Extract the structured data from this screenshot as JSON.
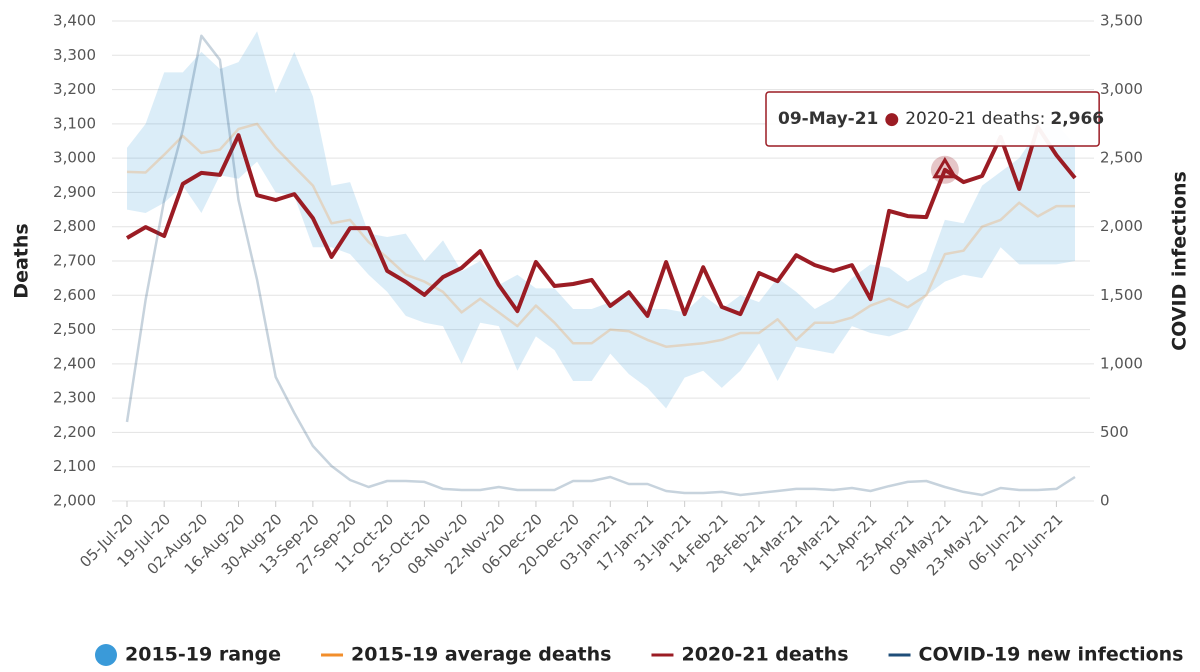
{
  "chart_data": {
    "type": "line",
    "categories": [
      "05-Jul-20",
      null,
      "19-Jul-20",
      null,
      "02-Aug-20",
      null,
      "16-Aug-20",
      null,
      "30-Aug-20",
      null,
      "13-Sep-20",
      null,
      "27-Sep-20",
      null,
      "11-Oct-20",
      null,
      "25-Oct-20",
      null,
      "08-Nov-20",
      null,
      "22-Nov-20",
      null,
      "06-Dec-20",
      null,
      "20-Dec-20",
      null,
      "03-Jan-21",
      null,
      "17-Jan-21",
      null,
      "31-Jan-21",
      null,
      "14-Feb-21",
      null,
      "28-Feb-21",
      null,
      "14-Mar-21",
      null,
      "28-Mar-21",
      null,
      "11-Apr-21",
      null,
      "25-Apr-21",
      null,
      "09-May-21",
      null,
      "23-May-21",
      null,
      "06-Jun-21",
      null,
      "20-Jun-21",
      null
    ],
    "series": [
      {
        "name": "2015-19 range",
        "color": "#3a9ad9",
        "low": [
          2850,
          2840,
          2870,
          2920,
          2840,
          2950,
          2940,
          2990,
          2900,
          2890,
          2740,
          2740,
          2720,
          2660,
          2610,
          2540,
          2520,
          2510,
          2400,
          2520,
          2510,
          2380,
          2480,
          2440,
          2350,
          2350,
          2430,
          2370,
          2330,
          2270,
          2360,
          2380,
          2330,
          2380,
          2460,
          2350,
          2450,
          2440,
          2430,
          2510,
          2490,
          2480,
          2500,
          2600,
          2640,
          2660,
          2650,
          2740,
          2690,
          2690,
          2690,
          2700
        ],
        "high": [
          3030,
          3100,
          3250,
          3250,
          3310,
          3260,
          3280,
          3370,
          3190,
          3310,
          3180,
          2920,
          2930,
          2780,
          2770,
          2780,
          2700,
          2760,
          2670,
          2700,
          2630,
          2660,
          2620,
          2620,
          2560,
          2560,
          2580,
          2610,
          2560,
          2560,
          2550,
          2600,
          2560,
          2600,
          2580,
          2650,
          2610,
          2560,
          2590,
          2650,
          2690,
          2680,
          2640,
          2670,
          2820,
          2810,
          2920,
          2960,
          3000,
          3080,
          3100,
          3040
        ]
      },
      {
        "name": "2015-19 average deaths",
        "color": "#f28e2b",
        "values": [
          2960,
          2958,
          3010,
          3065,
          3015,
          3025,
          3085,
          3100,
          3030,
          2975,
          2920,
          2810,
          2820,
          2755,
          2710,
          2660,
          2640,
          2610,
          2550,
          2590,
          2550,
          2510,
          2570,
          2520,
          2460,
          2460,
          2500,
          2495,
          2470,
          2450,
          2455,
          2460,
          2470,
          2490,
          2490,
          2530,
          2470,
          2520,
          2520,
          2535,
          2570,
          2590,
          2565,
          2600,
          2720,
          2730,
          2800,
          2820,
          2870,
          2830,
          2860,
          2860
        ]
      },
      {
        "name": "2020-21 deaths",
        "color": "#9b1c24",
        "values": [
          2767,
          2799,
          2773,
          2925,
          2957,
          2951,
          3067,
          2892,
          2878,
          2895,
          2825,
          2712,
          2796,
          2796,
          2671,
          2639,
          2601,
          2653,
          2680,
          2729,
          2630,
          2554,
          2697,
          2627,
          2633,
          2645,
          2569,
          2609,
          2540,
          2697,
          2545,
          2682,
          2566,
          2545,
          2665,
          2641,
          2717,
          2688,
          2671,
          2688,
          2589,
          2846,
          2831,
          2828,
          2966,
          2930,
          2948,
          3062,
          2910,
          3091,
          3009,
          2942
        ]
      },
      {
        "name": "COVID-19 new infections",
        "color": "#1f4e79",
        "axis": "y2",
        "values": [
          576,
          1466,
          2195,
          2706,
          3392,
          3217,
          2195,
          1612,
          904,
          642,
          401,
          255,
          153,
          102,
          146,
          146,
          139,
          88,
          80,
          80,
          102,
          80,
          80,
          80,
          146,
          146,
          175,
          124,
          124,
          73,
          58,
          58,
          66,
          44,
          58,
          73,
          88,
          88,
          80,
          95,
          73,
          109,
          139,
          146,
          102,
          66,
          44,
          95,
          80,
          80,
          88,
          175
        ]
      }
    ],
    "ylabel": "Deaths",
    "y2label": "COVID infections",
    "ylim": [
      2000,
      3400
    ],
    "yticks": [
      {
        "value": 2000,
        "label": "2,000"
      },
      {
        "value": 2100,
        "label": "2,100"
      },
      {
        "value": 2200,
        "label": "2,200"
      },
      {
        "value": 2300,
        "label": "2,300"
      },
      {
        "value": 2400,
        "label": "2,400"
      },
      {
        "value": 2500,
        "label": "2,500"
      },
      {
        "value": 2600,
        "label": "2,600"
      },
      {
        "value": 2700,
        "label": "2,700"
      },
      {
        "value": 2800,
        "label": "2,800"
      },
      {
        "value": 2900,
        "label": "2,900"
      },
      {
        "value": 3000,
        "label": "3,000"
      },
      {
        "value": 3100,
        "label": "3,100"
      },
      {
        "value": 3200,
        "label": "3,200"
      },
      {
        "value": 3300,
        "label": "3,300"
      },
      {
        "value": 3400,
        "label": "3,400"
      }
    ],
    "y2lim": [
      0,
      3500
    ],
    "y2ticks": [
      0,
      500,
      {
        "value": 1000,
        "label": "1,000"
      },
      {
        "value": 1500,
        "label": "1,500"
      },
      {
        "value": 2000,
        "label": "2,000"
      },
      {
        "value": 2500,
        "label": "2,500"
      },
      {
        "value": 3000,
        "label": "3,000"
      },
      {
        "value": 3500,
        "label": "3,500"
      }
    ],
    "grid": true,
    "legend": "bottom",
    "tooltip": {
      "title": "09-May-21",
      "series_label": "2020-21 deaths:",
      "value_label": "2,966"
    }
  }
}
